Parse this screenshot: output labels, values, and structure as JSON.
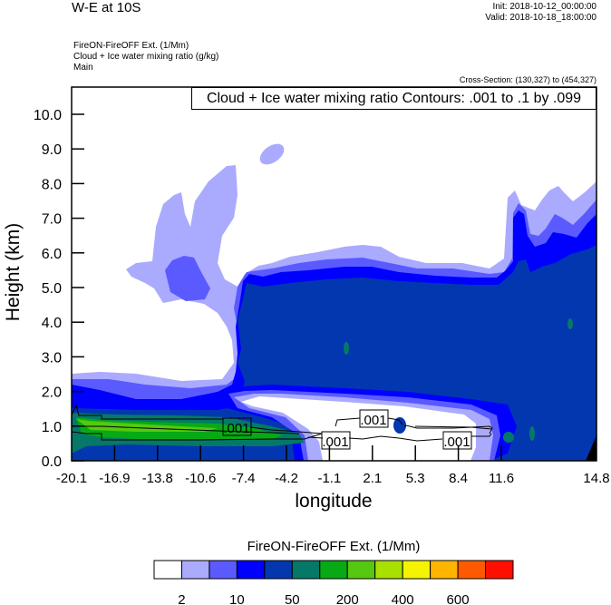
{
  "header": {
    "title": "W-E at 10S",
    "init": "Init: 2018-10-12_00:00:00",
    "valid": "Valid: 2018-10-18_18:00:00",
    "subtitles": [
      "FireON-FireOFF Ext.   (1/Mm)",
      "Cloud + Ice water mixing ratio   (g/kg)",
      "Main"
    ],
    "cross_section": "Cross-Section: (130,327) to (454,327)"
  },
  "chart_data": {
    "type": "heatmap",
    "title": "W-E at 10S",
    "xlabel": "longitude",
    "ylabel": "Height (km)",
    "xticks": [
      "-20.1",
      "-16.9",
      "-13.8",
      "-10.6",
      "-7.4",
      "-4.2",
      "-1.1",
      "2.1",
      "5.3",
      "8.4",
      "11.6",
      "14.8"
    ],
    "yticks": [
      "0.0",
      "1.0",
      "2.0",
      "3.0",
      "4.0",
      "5.0",
      "6.0",
      "7.0",
      "8.0",
      "9.0",
      "10.0"
    ],
    "xlim": [
      -20.1,
      14.8
    ],
    "ylim": [
      0,
      10.8
    ],
    "contour_legend": "Cloud + Ice water mixing ratio Contours: .001 to .1 by .099",
    "contour_labels": [
      ".001",
      ".001",
      ".001",
      ".001"
    ],
    "colorbar": {
      "title": "FireON-FireOFF Ext.  (1/Mm)",
      "labels": [
        "2",
        "10",
        "50",
        "200",
        "400",
        "600"
      ],
      "colors": [
        "#ffffff",
        "#aaaaff",
        "#5a5aff",
        "#0000ff",
        "#0337b0",
        "#067868",
        "#07aa15",
        "#55c80f",
        "#a8e000",
        "#f4f400",
        "#ffb400",
        "#ff5a00",
        "#ff0f00"
      ]
    }
  }
}
